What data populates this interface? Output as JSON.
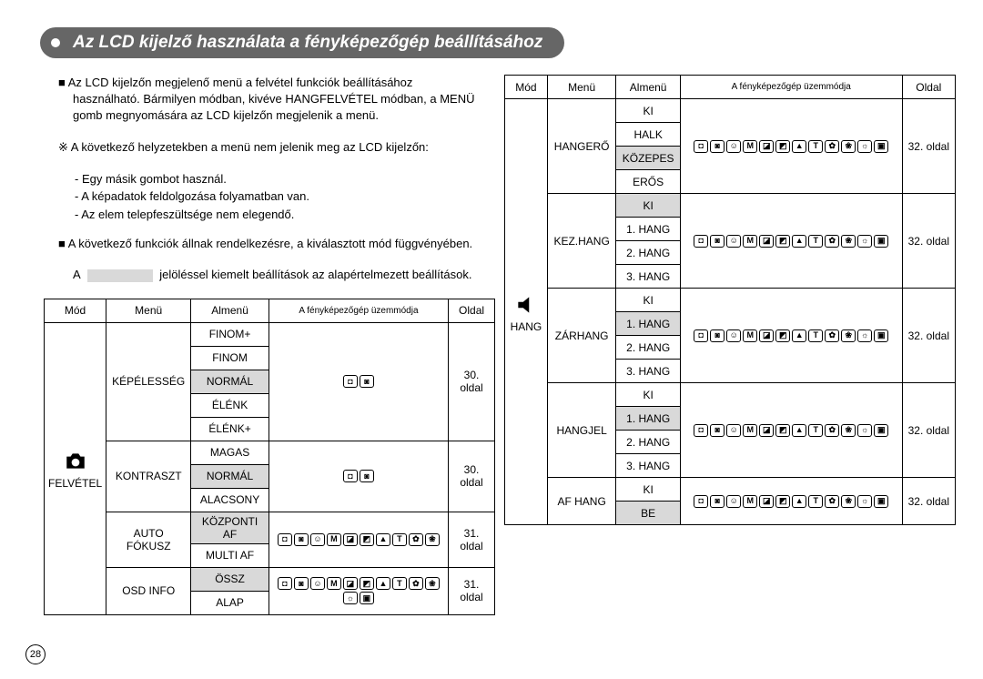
{
  "title": "Az LCD kijelző használata a fényképezőgép beállításához",
  "intro": {
    "p1": "■ Az LCD kijelzőn megjelenő menü a felvétel funkciók beállításához használható. Bármilyen módban, kivéve HANGFELVÉTEL módban, a MENÜ gomb megnyomására az LCD kijelzőn megjelenik a menü.",
    "p2": "※ A következő helyzetekben a menü nem jelenik meg az LCD kijelzőn:",
    "sub": [
      "- Egy másik gombot használ.",
      "- A képadatok feldolgozása folyamatban van.",
      "- Az elem telepfeszültsége nem elegendő."
    ],
    "p3": "■ A következő funkciók állnak rendelkezésre, a kiválasztott mód függvényében.",
    "p4a": "A",
    "p4b": "jelöléssel kiemelt beállítások az alapértelmezett beállítások."
  },
  "headers": {
    "mod": "Mód",
    "menu": "Menü",
    "almenu": "Almenü",
    "opmode": "A fényképezőgép üzemmódja",
    "oldal": "Oldal"
  },
  "left": {
    "modLabel": "FELVÉTEL",
    "rows": [
      {
        "menu": "KÉPÉLESSÉG",
        "items": [
          "FINOM+",
          "FINOM",
          "NORMÁL",
          "ÉLÉNK",
          "ÉLÉNK+"
        ],
        "default": "NORMÁL",
        "icons": 2,
        "page": "30. oldal"
      },
      {
        "menu": "KONTRASZT",
        "items": [
          "MAGAS",
          "NORMÁL",
          "ALACSONY"
        ],
        "default": "NORMÁL",
        "icons": 2,
        "page": "30. oldal"
      },
      {
        "menu": "AUTO FÓKUSZ",
        "items": [
          "KÖZPONTI AF",
          "MULTI AF"
        ],
        "default": "KÖZPONTI AF",
        "icons": 10,
        "page": "31. oldal"
      },
      {
        "menu": "OSD INFO",
        "items": [
          "ÖSSZ",
          "ALAP"
        ],
        "default": "ÖSSZ",
        "icons": 12,
        "page": "31. oldal"
      }
    ]
  },
  "right": {
    "modLabel": "HANG",
    "rows": [
      {
        "menu": "HANGERŐ",
        "items": [
          "KI",
          "HALK",
          "KÖZEPES",
          "ERŐS"
        ],
        "default": "KÖZEPES",
        "icons": 12,
        "page": "32. oldal"
      },
      {
        "menu": "KEZ.HANG",
        "items": [
          "KI",
          "1. HANG",
          "2. HANG",
          "3. HANG"
        ],
        "default": "KI",
        "icons": 12,
        "page": "32. oldal"
      },
      {
        "menu": "ZÁRHANG",
        "items": [
          "KI",
          "1. HANG",
          "2. HANG",
          "3. HANG"
        ],
        "default": "1. HANG",
        "icons": 12,
        "page": "32. oldal"
      },
      {
        "menu": "HANGJEL",
        "items": [
          "KI",
          "1. HANG",
          "2. HANG",
          "3. HANG"
        ],
        "default": "1. HANG",
        "icons": 12,
        "page": "32. oldal"
      },
      {
        "menu": "AF HANG",
        "items": [
          "KI",
          "BE"
        ],
        "default": "BE",
        "icons": 12,
        "page": "32. oldal"
      }
    ]
  },
  "pageNumber": "28",
  "iconGlyphs": [
    "◘",
    "◙",
    "☺",
    "M",
    "◪",
    "◩",
    "▲",
    "T",
    "✿",
    "❀",
    "☼",
    "▣"
  ]
}
